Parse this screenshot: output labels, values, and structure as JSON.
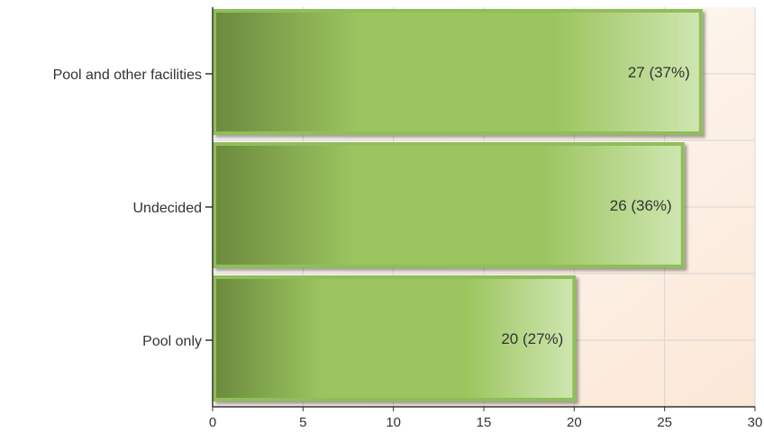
{
  "chart_data": {
    "type": "bar",
    "orientation": "horizontal",
    "categories": [
      "Pool and other facilities",
      "Undecided",
      "Pool only"
    ],
    "values": [
      27,
      26,
      20
    ],
    "percentages": [
      "37%",
      "36%",
      "27%"
    ],
    "data_labels": [
      "27 (37%)",
      "26 (36%)",
      "20 (27%)"
    ],
    "x_ticks": [
      "0",
      "5",
      "10",
      "15",
      "20",
      "25",
      "30"
    ],
    "xlim": [
      0,
      30
    ],
    "title": "",
    "xlabel": "",
    "ylabel": "",
    "grid": true,
    "legend": "none",
    "colors": {
      "bar_dark": "#6b8a3e",
      "bar_mid": "#9cc55f",
      "bar_light": "#cfe6b1",
      "bar_border": "#8fbe5a",
      "plot_bg_top": "#ffffff",
      "plot_bg_bottom": "#fbe7d6",
      "grid": "#d6d6d6",
      "axis": "#333333",
      "text": "#333333"
    }
  }
}
